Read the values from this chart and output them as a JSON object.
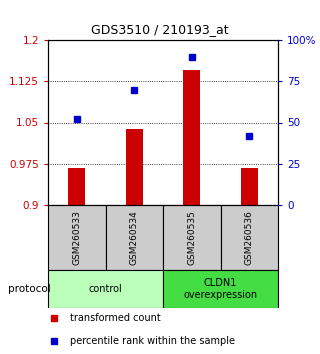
{
  "title": "GDS3510 / 210193_at",
  "samples": [
    "GSM260533",
    "GSM260534",
    "GSM260535",
    "GSM260536"
  ],
  "transformed_counts": [
    0.968,
    1.038,
    1.145,
    0.968
  ],
  "percentile_ranks": [
    52,
    70,
    90,
    42
  ],
  "bar_color": "#cc0000",
  "dot_color": "#0000cc",
  "left_ylim": [
    0.9,
    1.2
  ],
  "left_yticks": [
    0.9,
    0.975,
    1.05,
    1.125,
    1.2
  ],
  "left_ytick_labels": [
    "0.9",
    "0.975",
    "1.05",
    "1.125",
    "1.2"
  ],
  "right_ylim": [
    0,
    100
  ],
  "right_yticks": [
    0,
    25,
    50,
    75,
    100
  ],
  "right_ytick_labels": [
    "0",
    "25",
    "50",
    "75",
    "100%"
  ],
  "groups": [
    {
      "label": "control",
      "samples": [
        0,
        1
      ],
      "color": "#bbffbb"
    },
    {
      "label": "CLDN1\noverexpression",
      "samples": [
        2,
        3
      ],
      "color": "#44dd44"
    }
  ],
  "protocol_label": "protocol",
  "legend_items": [
    {
      "color": "#cc0000",
      "label": "transformed count"
    },
    {
      "color": "#0000cc",
      "label": "percentile rank within the sample"
    }
  ],
  "bar_baseline": 0.9,
  "background_color": "#ffffff",
  "sample_box_color": "#cccccc"
}
